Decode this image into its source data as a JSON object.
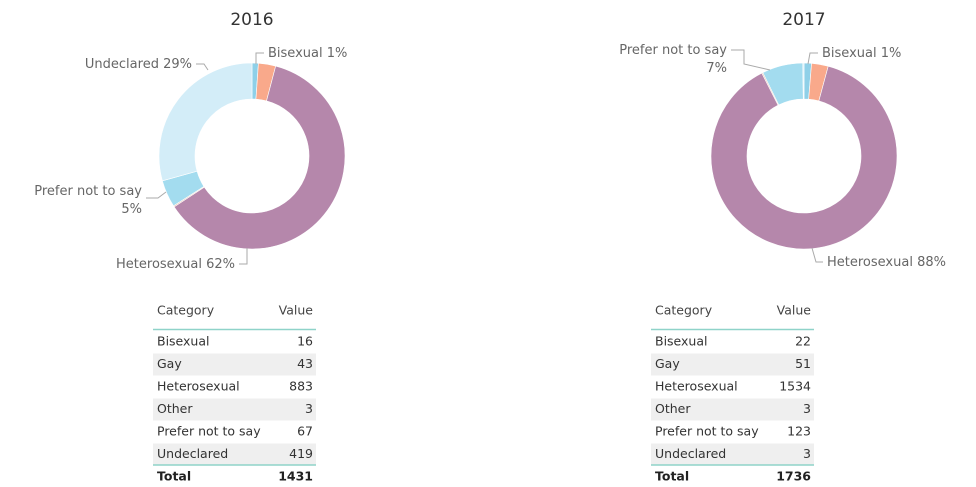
{
  "chart_data": [
    {
      "type": "donut",
      "title": "2016",
      "categories": [
        "Bisexual",
        "Gay",
        "Heterosexual",
        "Other",
        "Prefer not to say",
        "Undeclared"
      ],
      "values": [
        1.1,
        3.0,
        61.7,
        0.2,
        4.7,
        29.3
      ],
      "value_labels": [
        "1%",
        null,
        "62%",
        null,
        "5%",
        "29%"
      ],
      "colors": [
        "#8fd0e8",
        "#f9a98b",
        "#b587ab",
        "#e6b8a6",
        "#a3dcef",
        "#d3edf8"
      ]
    },
    {
      "type": "donut",
      "title": "2017",
      "categories": [
        "Bisexual",
        "Gay",
        "Heterosexual",
        "Other",
        "Prefer not to say",
        "Undeclared"
      ],
      "values": [
        1.3,
        2.9,
        88.4,
        0.2,
        7.1,
        0.2
      ],
      "value_labels": [
        "1%",
        null,
        "88%",
        null,
        "7%",
        null
      ],
      "colors": [
        "#8fd0e8",
        "#f9a98b",
        "#b587ab",
        "#e6b8a6",
        "#a3dcef",
        "#d3edf8"
      ]
    }
  ],
  "tables": [
    {
      "columns": [
        "Category",
        "Value"
      ],
      "rows": [
        [
          "Bisexual",
          "16"
        ],
        [
          "Gay",
          "43"
        ],
        [
          "Heterosexual",
          "883"
        ],
        [
          "Other",
          "3"
        ],
        [
          "Prefer not to say",
          "67"
        ],
        [
          "Undeclared",
          "419"
        ]
      ],
      "total": [
        "Total",
        "1431"
      ]
    },
    {
      "columns": [
        "Category",
        "Value"
      ],
      "rows": [
        [
          "Bisexual",
          "22"
        ],
        [
          "Gay",
          "51"
        ],
        [
          "Heterosexual",
          "1534"
        ],
        [
          "Other",
          "3"
        ],
        [
          "Prefer not to say",
          "123"
        ],
        [
          "Undeclared",
          "3"
        ]
      ],
      "total": [
        "Total",
        "1736"
      ]
    }
  ]
}
